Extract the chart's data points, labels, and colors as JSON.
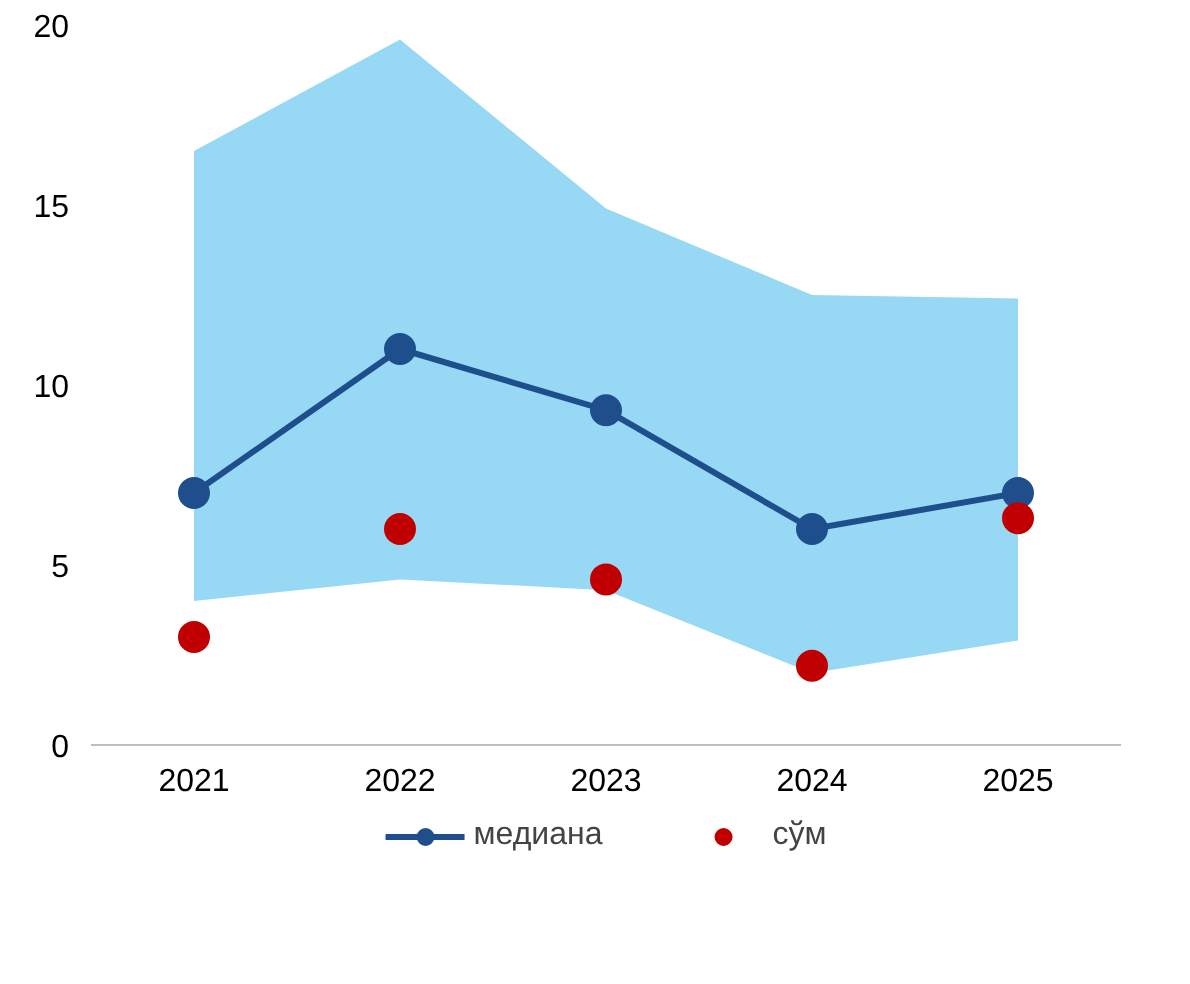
{
  "chart_data": {
    "type": "line",
    "categories": [
      "2021",
      "2022",
      "2023",
      "2024",
      "2025"
    ],
    "series": [
      {
        "name": "медиана",
        "color": "#1f4e8c",
        "marker": "circle",
        "line_style": "solid",
        "values": [
          7,
          11,
          9.3,
          6,
          7
        ],
        "lower": [
          4.0,
          4.6,
          4.3,
          2.0,
          2.9
        ],
        "upper": [
          16.5,
          19.6,
          14.9,
          12.5,
          12.4
        ]
      },
      {
        "name": "сўм",
        "type": "scatter",
        "color": "#c00000",
        "marker": "circle",
        "values": [
          3,
          6,
          4.6,
          2.2,
          6.3
        ]
      }
    ],
    "ylim": [
      0,
      20
    ],
    "yticks": [
      0,
      5,
      10,
      15,
      20
    ],
    "grid": false,
    "legend": "bottom"
  }
}
